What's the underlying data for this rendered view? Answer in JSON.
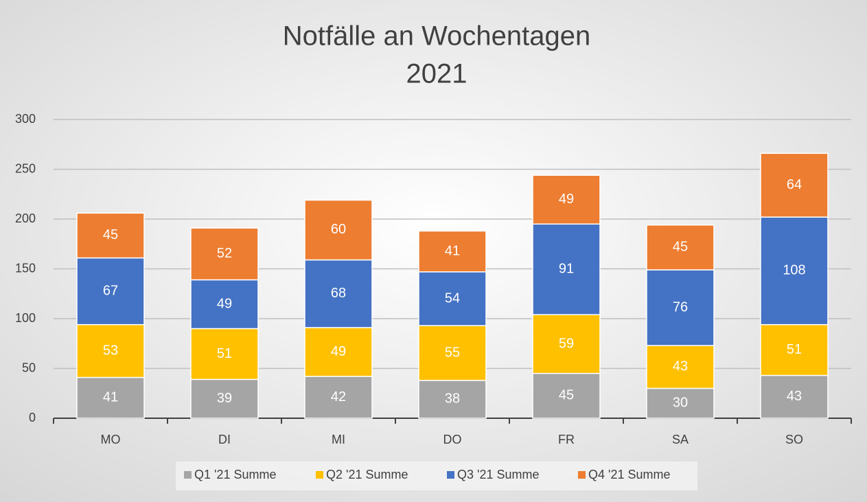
{
  "chart_data": {
    "type": "stacked_bar",
    "title": "Notfälle an Wochentagen",
    "subtitle": "2021",
    "categories": [
      "MO",
      "DI",
      "MI",
      "DO",
      "FR",
      "SA",
      "SO"
    ],
    "series": [
      {
        "name": "Q1 '21 Summe",
        "color": "#a5a5a5",
        "values": [
          41,
          39,
          42,
          38,
          45,
          30,
          43
        ]
      },
      {
        "name": "Q2 '21 Summe",
        "color": "#ffc000",
        "values": [
          53,
          51,
          49,
          55,
          59,
          43,
          51
        ]
      },
      {
        "name": "Q3 '21 Summe",
        "color": "#4472c4",
        "values": [
          67,
          49,
          68,
          54,
          91,
          76,
          108
        ]
      },
      {
        "name": "Q4 '21 Summe",
        "color": "#ed7d31",
        "values": [
          45,
          52,
          60,
          41,
          49,
          45,
          64
        ]
      }
    ],
    "ylim": [
      0,
      300
    ],
    "yticks": [
      0,
      50,
      100,
      150,
      200,
      250,
      300
    ],
    "grid": true,
    "legend": "bottom"
  }
}
